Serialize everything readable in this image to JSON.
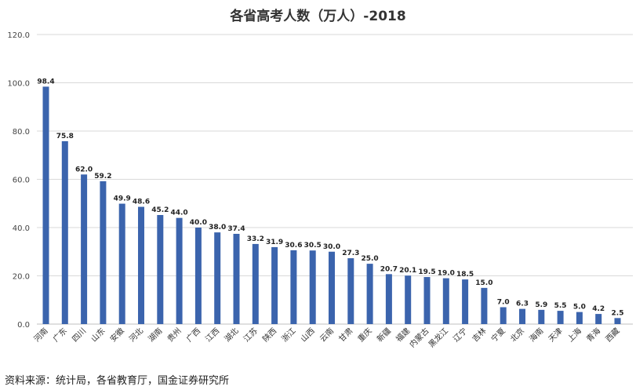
{
  "chart_data": {
    "type": "bar",
    "title": "各省高考人数（万人）-2018",
    "xlabel": "",
    "ylabel": "",
    "ylim": [
      0,
      120
    ],
    "yticks": [
      "0.0",
      "20.0",
      "40.0",
      "60.0",
      "80.0",
      "100.0",
      "120.0"
    ],
    "grid": true,
    "legend": "none",
    "bar_color": "#3b64ad",
    "categories": [
      "河南",
      "广东",
      "四川",
      "山东",
      "安徽",
      "河北",
      "湖南",
      "贵州",
      "广西",
      "江西",
      "湖北",
      "江苏",
      "陕西",
      "浙江",
      "山西",
      "云南",
      "甘肃",
      "重庆",
      "新疆",
      "福建",
      "内蒙古",
      "黑龙江",
      "辽宁",
      "吉林",
      "宁夏",
      "北京",
      "海南",
      "天津",
      "上海",
      "青海",
      "西藏"
    ],
    "values": [
      98.4,
      75.8,
      62.0,
      59.2,
      49.9,
      48.6,
      45.2,
      44.0,
      40.0,
      38.0,
      37.4,
      33.2,
      31.9,
      30.6,
      30.5,
      30.0,
      27.3,
      25.0,
      20.7,
      20.1,
      19.5,
      19.0,
      18.5,
      15.0,
      7.0,
      6.3,
      5.9,
      5.5,
      5.0,
      4.2,
      2.5
    ],
    "value_labels": [
      "98.4",
      "75.8",
      "62.0",
      "59.2",
      "49.9",
      "48.6",
      "45.2",
      "44.0",
      "40.0",
      "38.0",
      "37.4",
      "33.2",
      "31.9",
      "30.6",
      "30.5",
      "30.0",
      "27.3",
      "25.0",
      "20.7",
      "20.1",
      "19.5",
      "19.0",
      "18.5",
      "15.0",
      "7.0",
      "6.3",
      "5.9",
      "5.5",
      "5.0",
      "4.2",
      "2.5"
    ]
  },
  "source": "资料来源：统计局，各省教育厅，国金证券研究所"
}
